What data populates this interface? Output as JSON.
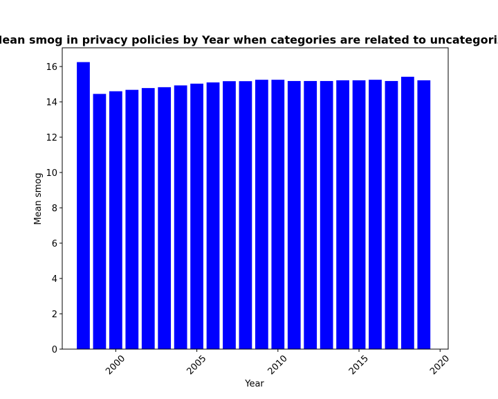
{
  "chart_data": {
    "type": "bar",
    "title": "Mean smog in privacy policies by Year when categories are related to uncategorized",
    "xlabel": "Year",
    "ylabel": "Mean smog",
    "x": [
      1998,
      1999,
      2000,
      2001,
      2002,
      2003,
      2004,
      2005,
      2006,
      2007,
      2008,
      2009,
      2010,
      2011,
      2012,
      2013,
      2014,
      2015,
      2016,
      2017,
      2018,
      2019
    ],
    "values": [
      16.25,
      14.45,
      14.6,
      14.68,
      14.78,
      14.83,
      14.93,
      15.03,
      15.1,
      15.17,
      15.17,
      15.25,
      15.25,
      15.18,
      15.18,
      15.18,
      15.22,
      15.22,
      15.25,
      15.18,
      15.42,
      15.22
    ],
    "xlim": [
      1996.7,
      2020.5
    ],
    "ylim": [
      0,
      17.06
    ],
    "xticks": [
      "2000",
      "2005",
      "2010",
      "2015",
      "2020"
    ],
    "yticks": [
      "0",
      "2",
      "4",
      "6",
      "8",
      "10",
      "12",
      "14",
      "16"
    ],
    "bar_color": "#0000ff",
    "grid": false,
    "legend": "none"
  }
}
